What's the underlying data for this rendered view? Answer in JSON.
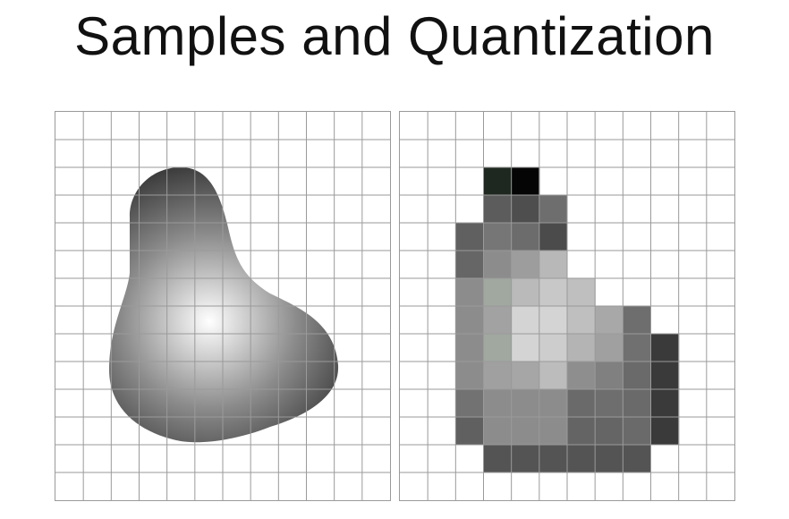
{
  "slide": {
    "title": "Samples and Quantization"
  },
  "figures": {
    "continuous": {
      "grid_rows": 14,
      "grid_cols": 12,
      "gradient": {
        "highlight_color": "#ffffff",
        "mid_color": "#8c8c8c",
        "shadow_color": "#141414"
      },
      "grid_color": "#9a9a9a"
    },
    "sampled": {
      "grid_rows": 14,
      "grid_cols": 12,
      "grid_color": "#9a9a9a",
      "pixels": [
        [
          2,
          3,
          "#1f2820"
        ],
        [
          2,
          4,
          "#050505"
        ],
        [
          3,
          3,
          "#5c5c5c"
        ],
        [
          3,
          4,
          "#4e4e4e"
        ],
        [
          3,
          5,
          "#6e6e6e"
        ],
        [
          4,
          2,
          "#606060"
        ],
        [
          4,
          3,
          "#767676"
        ],
        [
          4,
          4,
          "#6c6c6c"
        ],
        [
          4,
          5,
          "#4b4b4b"
        ],
        [
          5,
          2,
          "#666666"
        ],
        [
          5,
          3,
          "#8c8c8c"
        ],
        [
          5,
          4,
          "#9d9d9d"
        ],
        [
          5,
          5,
          "#b8b8b8"
        ],
        [
          6,
          2,
          "#8c8c8c"
        ],
        [
          6,
          3,
          "#a0a8a0"
        ],
        [
          6,
          4,
          "#bababa"
        ],
        [
          6,
          5,
          "#c8c8c8"
        ],
        [
          6,
          6,
          "#bfbfbf"
        ],
        [
          7,
          2,
          "#8c8c8c"
        ],
        [
          7,
          3,
          "#a2a2a2"
        ],
        [
          7,
          4,
          "#d4d4d4"
        ],
        [
          7,
          5,
          "#d4d4d4"
        ],
        [
          7,
          6,
          "#bfbfbf"
        ],
        [
          7,
          7,
          "#a8a8a8"
        ],
        [
          7,
          8,
          "#6e6e6e"
        ],
        [
          8,
          2,
          "#8c8c8c"
        ],
        [
          8,
          3,
          "#a0a8a0"
        ],
        [
          8,
          4,
          "#d4d4d4"
        ],
        [
          8,
          5,
          "#cdcdcd"
        ],
        [
          8,
          6,
          "#b4b4b4"
        ],
        [
          8,
          7,
          "#a0a0a0"
        ],
        [
          8,
          8,
          "#707070"
        ],
        [
          8,
          9,
          "#3a3a3a"
        ],
        [
          9,
          2,
          "#8c8c8c"
        ],
        [
          9,
          3,
          "#a0a0a0"
        ],
        [
          9,
          4,
          "#a6a6a6"
        ],
        [
          9,
          5,
          "#bcbcbc"
        ],
        [
          9,
          6,
          "#8e8e8e"
        ],
        [
          9,
          7,
          "#808080"
        ],
        [
          9,
          8,
          "#6a6a6a"
        ],
        [
          9,
          9,
          "#3a3a3a"
        ],
        [
          10,
          2,
          "#727272"
        ],
        [
          10,
          3,
          "#8c8c8c"
        ],
        [
          10,
          4,
          "#8c8c8c"
        ],
        [
          10,
          5,
          "#8c8c8c"
        ],
        [
          10,
          6,
          "#6a6a6a"
        ],
        [
          10,
          7,
          "#6e6e6e"
        ],
        [
          10,
          8,
          "#6a6a6a"
        ],
        [
          10,
          9,
          "#3a3a3a"
        ],
        [
          11,
          2,
          "#606060"
        ],
        [
          11,
          3,
          "#8c8c8c"
        ],
        [
          11,
          4,
          "#8c8c8c"
        ],
        [
          11,
          5,
          "#8c8c8c"
        ],
        [
          11,
          6,
          "#646464"
        ],
        [
          11,
          7,
          "#656565"
        ],
        [
          11,
          8,
          "#6a6a6a"
        ],
        [
          11,
          9,
          "#3a3a3a"
        ],
        [
          12,
          3,
          "#545454"
        ],
        [
          12,
          4,
          "#545454"
        ],
        [
          12,
          5,
          "#545454"
        ],
        [
          12,
          6,
          "#545454"
        ],
        [
          12,
          7,
          "#545454"
        ],
        [
          12,
          8,
          "#545454"
        ]
      ]
    }
  }
}
